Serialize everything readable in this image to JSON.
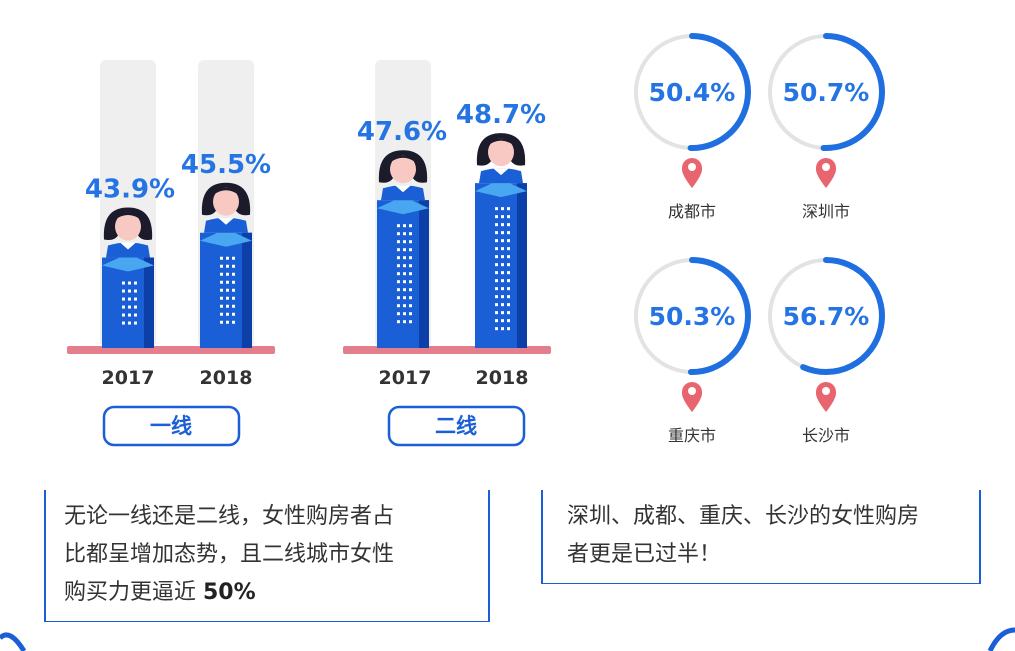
{
  "chart_data": [
    {
      "type": "bar",
      "group": "一线",
      "categories": [
        "2017",
        "2018"
      ],
      "values": [
        43.9,
        45.5
      ],
      "value_labels": [
        "43.9%",
        "45.5%"
      ]
    },
    {
      "type": "bar",
      "group": "二线",
      "categories": [
        "2017",
        "2018"
      ],
      "values": [
        47.6,
        48.7
      ],
      "value_labels": [
        "47.6%",
        "48.7%"
      ]
    },
    {
      "type": "pie",
      "cities": [
        {
          "name": "成都市",
          "value": 50.4,
          "label": "50.4%"
        },
        {
          "name": "深圳市",
          "value": 50.7,
          "label": "50.7%"
        },
        {
          "name": "重庆市",
          "value": 50.3,
          "label": "50.3%"
        },
        {
          "name": "长沙市",
          "value": 56.7,
          "label": "56.7%"
        }
      ]
    }
  ],
  "notes": {
    "left_lines": [
      "无论一线还是二线，女性购房者占",
      "比都呈增加态势，且二线城市女性"
    ],
    "left_last": "购买力更逼近 ",
    "left_bold": "50%",
    "right_lines": [
      "深圳、成都、重庆、长沙的女性购房",
      "者更是已过半！"
    ]
  },
  "colors": {
    "bar_dark": "#0c3fa8",
    "bar_main": "#1a5fd6",
    "bar_light": "#49a6f0",
    "value_text": "#2574e3",
    "ground": "#e47e8c",
    "ring": "#1f6fe0",
    "ring_track": "#e3e3e3",
    "pin": "#e8646f",
    "label_box": "#1a5fd6"
  }
}
